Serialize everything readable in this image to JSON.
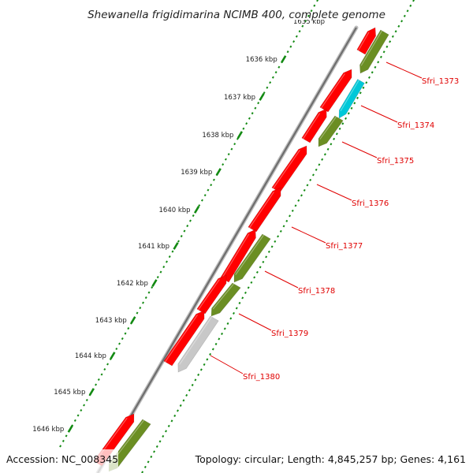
{
  "title": "Shewanella frigidimarina NCIMB 400, complete genome",
  "top_partial_label": "1635 kbp",
  "kbp_ticks": [
    {
      "label": "1636 kbp"
    },
    {
      "label": "1637 kbp"
    },
    {
      "label": "1638 kbp"
    },
    {
      "label": "1639 kbp"
    },
    {
      "label": "1640 kbp"
    },
    {
      "label": "1641 kbp"
    },
    {
      "label": "1642 kbp"
    },
    {
      "label": "1643 kbp"
    },
    {
      "label": "1644 kbp"
    },
    {
      "label": "1645 kbp"
    },
    {
      "label": "1646 kbp"
    }
  ],
  "gene_labels": [
    {
      "label": "Sfri_1373"
    },
    {
      "label": "Sfri_1374"
    },
    {
      "label": "Sfri_1375"
    },
    {
      "label": "Sfri_1376"
    },
    {
      "label": "Sfri_1377"
    },
    {
      "label": "Sfri_1378"
    },
    {
      "label": "Sfri_1379"
    },
    {
      "label": "Sfri_1380"
    }
  ],
  "colors": {
    "forward_gene": "#ff0000",
    "reverse_gene": "#6b8e23",
    "highlight_gene": "#00c8d8",
    "pseudo_gene": "#c8c8c8",
    "tick_green": "#138a13",
    "backbone": "#8a8a8a",
    "label_red": "#e00000"
  },
  "footer": {
    "accession": "Accession: NC_008345",
    "summary": "Topology: circular; Length: 4,845,257 bp; Genes: 4,161"
  }
}
